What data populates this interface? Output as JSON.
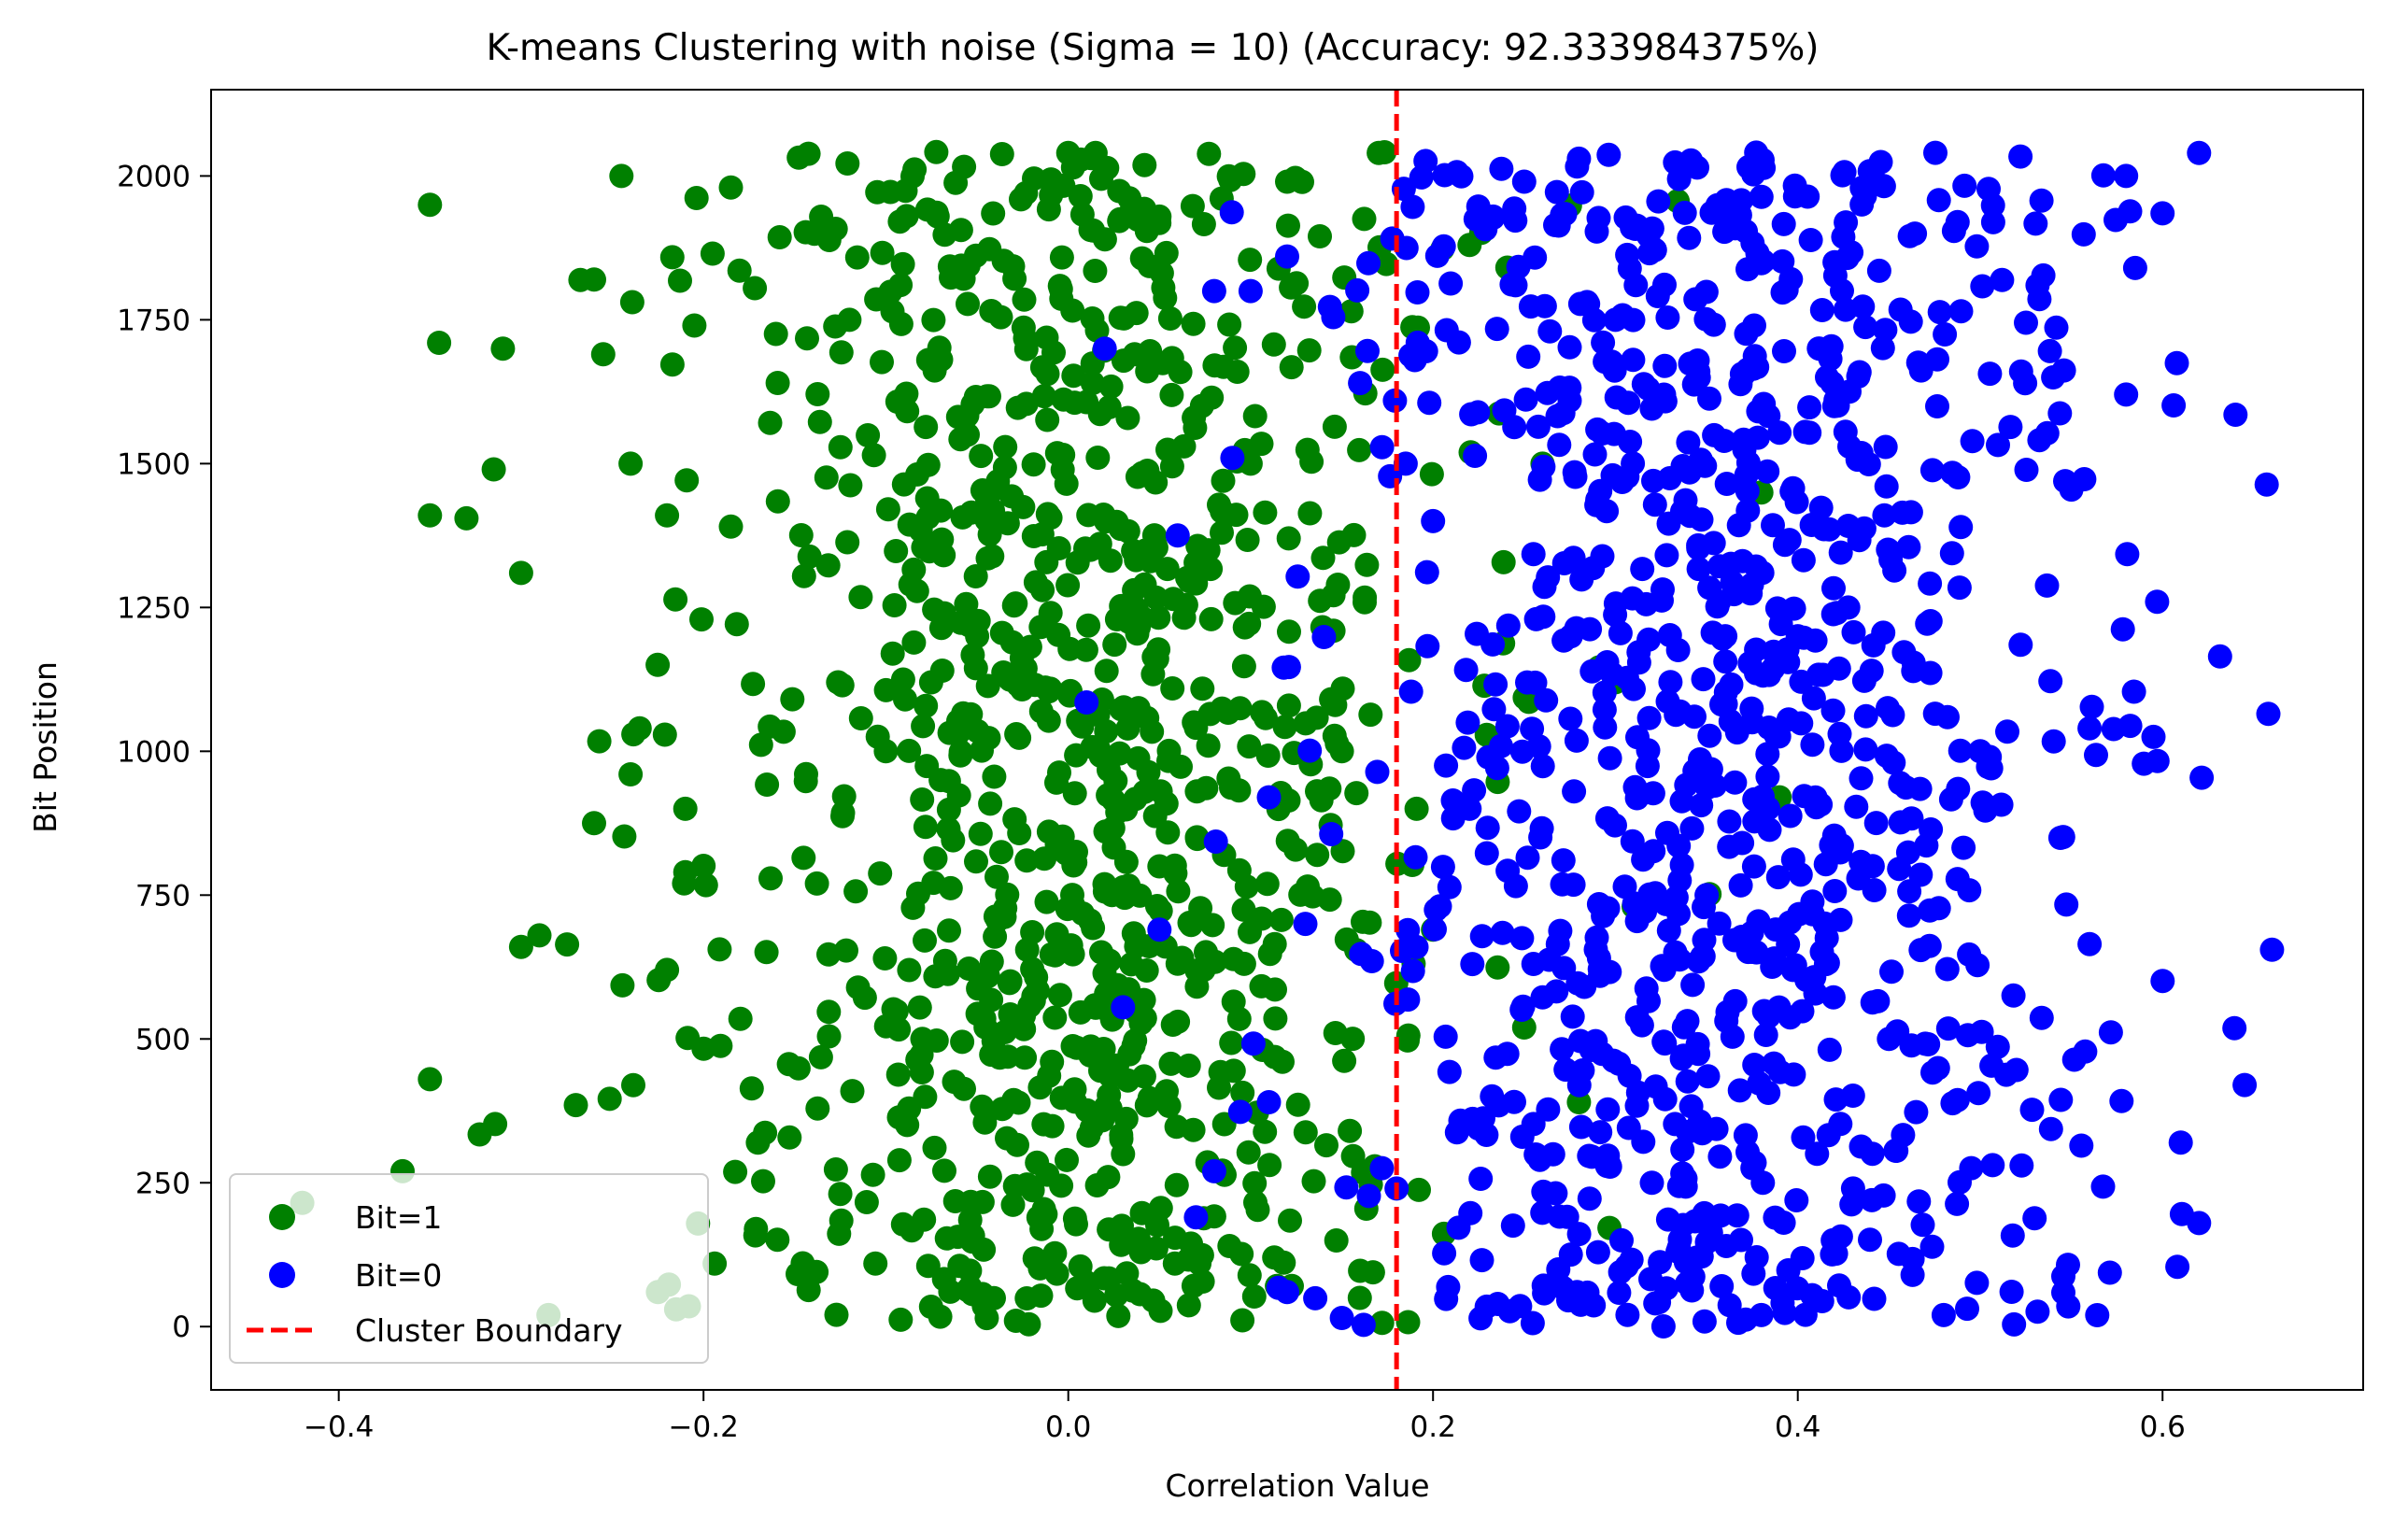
{
  "chart_data": {
    "type": "scatter",
    "title": "K-means Clustering with noise (Sigma = 10) (Accuracy: 92.333984375%)",
    "xlabel": "Correlation Value",
    "ylabel": "Bit Position",
    "xlim": [
      -0.47,
      0.71
    ],
    "ylim": [
      -110,
      2150
    ],
    "x_ticks": [
      -0.4,
      -0.2,
      0.0,
      0.2,
      0.4,
      0.6
    ],
    "x_tick_labels": [
      "−0.4",
      "−0.2",
      "0.0",
      "0.2",
      "0.4",
      "0.6"
    ],
    "y_ticks": [
      0,
      250,
      500,
      750,
      1000,
      1250,
      1500,
      1750,
      2000
    ],
    "y_tick_labels": [
      "0",
      "250",
      "500",
      "750",
      "1000",
      "1250",
      "1500",
      "1750",
      "2000"
    ],
    "grid": false,
    "legend_position": "lower-left",
    "boundary": {
      "name": "Cluster Boundary",
      "x": 0.18,
      "color": "#ff0000",
      "style": "dashed"
    },
    "series": [
      {
        "name": "Bit=1",
        "color": "#008000",
        "approx_count": 1024,
        "x_mean": 0.0,
        "x_std": 0.1,
        "y_range": [
          0,
          2047
        ],
        "sample_points": [
          [
            -0.42,
            215
          ],
          [
            -0.285,
            20
          ],
          [
            -0.225,
            60
          ],
          [
            -0.215,
            30
          ],
          [
            -0.365,
            270
          ],
          [
            -0.35,
            1950
          ],
          [
            -0.345,
            1710
          ],
          [
            -0.31,
            1700
          ],
          [
            -0.3,
            1310
          ],
          [
            -0.29,
            680
          ],
          [
            -0.35,
            1410
          ],
          [
            -0.33,
            1405
          ],
          [
            -0.315,
            1490
          ],
          [
            -0.3,
            660
          ],
          [
            -0.27,
            385
          ],
          [
            -0.26,
            1820
          ],
          [
            -0.255,
            1690
          ],
          [
            -0.245,
            2000
          ],
          [
            -0.24,
            1500
          ],
          [
            -0.235,
            1040
          ],
          [
            -0.22,
            1410
          ],
          [
            -0.205,
            1740
          ],
          [
            -0.195,
            1865
          ],
          [
            -0.185,
            1980
          ],
          [
            -0.35,
            430
          ],
          [
            -0.26,
            875
          ],
          [
            -0.24,
            960
          ],
          [
            -0.22,
            620
          ],
          [
            -0.21,
            900
          ],
          [
            -0.21,
            790
          ],
          [
            -0.1,
            1000
          ],
          [
            -0.05,
            1200
          ],
          [
            0.0,
            2040
          ],
          [
            0.05,
            800
          ],
          [
            0.1,
            1500
          ],
          [
            -0.08,
            500
          ],
          [
            0.03,
            300
          ],
          [
            0.12,
            1990
          ],
          [
            0.15,
            1000
          ],
          [
            -0.12,
            1750
          ],
          [
            0.2,
            690
          ],
          [
            0.22,
            1880
          ],
          [
            0.25,
            520
          ],
          [
            0.26,
            1500
          ],
          [
            0.3,
            1120
          ],
          [
            0.35,
            945
          ],
          [
            0.38,
            1450
          ],
          [
            0.39,
            920
          ],
          [
            0.31,
            730
          ],
          [
            0.28,
            390
          ]
        ]
      },
      {
        "name": "Bit=0",
        "color": "#0000ff",
        "approx_count": 1024,
        "x_mean": 0.36,
        "x_std": 0.1,
        "y_range": [
          0,
          2047
        ],
        "sample_points": [
          [
            0.62,
            2040
          ],
          [
            0.658,
            1065
          ],
          [
            0.66,
            655
          ],
          [
            0.64,
            1585
          ],
          [
            0.645,
            420
          ],
          [
            0.62,
            180
          ],
          [
            0.61,
            320
          ],
          [
            0.6,
            1935
          ],
          [
            0.597,
            1260
          ],
          [
            0.595,
            1025
          ],
          [
            0.58,
            2000
          ],
          [
            0.585,
            1840
          ],
          [
            0.58,
            1620
          ],
          [
            0.56,
            1040
          ],
          [
            0.56,
            665
          ],
          [
            0.55,
            1455
          ],
          [
            0.54,
            1650
          ],
          [
            0.5,
            1000
          ],
          [
            0.45,
            500
          ],
          [
            0.4,
            1200
          ],
          [
            0.35,
            750
          ],
          [
            0.3,
            1750
          ],
          [
            0.32,
            250
          ],
          [
            0.38,
            20
          ],
          [
            0.42,
            1600
          ],
          [
            0.48,
            20
          ],
          [
            0.28,
            2030
          ],
          [
            0.25,
            1990
          ],
          [
            0.22,
            900
          ],
          [
            0.2,
            1400
          ],
          [
            0.19,
            1680
          ],
          [
            0.185,
            1500
          ],
          [
            0.18,
            240
          ],
          [
            0.08,
            1800
          ],
          [
            0.09,
            1510
          ],
          [
            0.11,
            920
          ],
          [
            0.12,
            1860
          ],
          [
            0.13,
            700
          ],
          [
            0.1,
            1800
          ],
          [
            0.06,
            1375
          ],
          [
            0.08,
            270
          ],
          [
            0.07,
            190
          ],
          [
            0.05,
            690
          ],
          [
            0.03,
            555
          ],
          [
            0.01,
            1085
          ],
          [
            0.02,
            1700
          ],
          [
            0.11,
            390
          ],
          [
            0.12,
            60
          ],
          [
            0.15,
            15
          ],
          [
            0.16,
            1640
          ]
        ]
      }
    ]
  }
}
